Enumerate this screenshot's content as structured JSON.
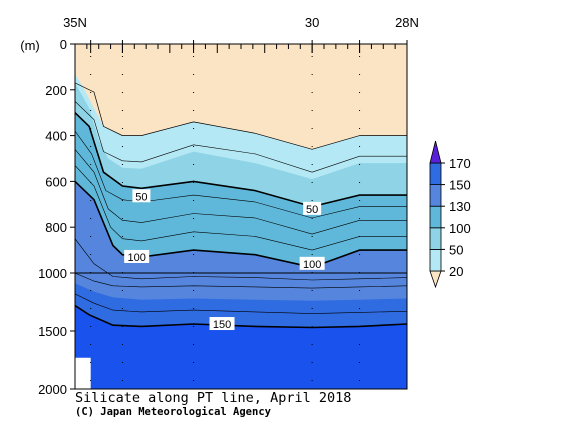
{
  "chart_data": {
    "type": "contour",
    "title": "Silicate along PT line, April 2018",
    "credit": "(C) Japan Meteorological Agency",
    "x_axis": {
      "orientation": "latitude, north (left) to south (right)",
      "range": [
        35,
        28
      ],
      "tick_labels": [
        {
          "lat": 35,
          "text": "35N"
        },
        {
          "lat": 30,
          "text": "30"
        },
        {
          "lat": 28,
          "text": "28N"
        }
      ]
    },
    "y_axis": {
      "label": "(m)",
      "range": [
        0,
        2000
      ],
      "scale": "piecewise linear: 0-1000 m upper panel, 1000-2000 m compressed lower panel",
      "tick_labels": [
        0,
        200,
        400,
        600,
        800,
        1000,
        1500,
        2000
      ]
    },
    "station_latitudes": [
      34.67,
      34.0,
      32.5,
      30.0,
      29.0,
      28.0
    ],
    "colorbar": {
      "levels": [
        20,
        50,
        100,
        130,
        150,
        170
      ],
      "level_labels": [
        "20",
        "50",
        "100",
        "130",
        "150",
        "170"
      ],
      "colors": [
        "#fbe4c4",
        "#b4e8f4",
        "#8ed4e6",
        "#5fb8da",
        "#5585dd",
        "#2f6be1",
        "#1a52ee",
        "#5a1fd8"
      ],
      "extend": "both"
    },
    "contour_labels": [
      {
        "text": "50",
        "lat": 33.6,
        "depth": 665
      },
      {
        "text": "50",
        "lat": 30.0,
        "depth": 720
      },
      {
        "text": "100",
        "lat": 33.7,
        "depth": 930
      },
      {
        "text": "100",
        "lat": 30.0,
        "depth": 960
      },
      {
        "text": "150",
        "lat": 31.9,
        "depth": 1440
      }
    ],
    "contours": [
      {
        "value": 20,
        "bold": false,
        "points": [
          [
            35,
            170
          ],
          [
            34.6,
            210
          ],
          [
            34.4,
            360
          ],
          [
            34.0,
            400
          ],
          [
            33.6,
            400
          ],
          [
            32.5,
            340
          ],
          [
            31.2,
            390
          ],
          [
            30.0,
            460
          ],
          [
            29.0,
            400
          ],
          [
            28.0,
            400
          ]
        ]
      },
      {
        "value": 50,
        "bold": true,
        "points": [
          [
            35,
            300
          ],
          [
            34.7,
            360
          ],
          [
            34.4,
            560
          ],
          [
            34.0,
            620
          ],
          [
            33.6,
            630
          ],
          [
            32.5,
            600
          ],
          [
            31.2,
            640
          ],
          [
            30.0,
            710
          ],
          [
            29.0,
            660
          ],
          [
            28.0,
            660
          ]
        ]
      },
      {
        "value": 100,
        "bold": true,
        "points": [
          [
            35,
            600
          ],
          [
            34.6,
            680
          ],
          [
            34.2,
            880
          ],
          [
            34.0,
            920
          ],
          [
            33.6,
            930
          ],
          [
            32.5,
            900
          ],
          [
            31.2,
            920
          ],
          [
            30.0,
            975
          ],
          [
            29.0,
            900
          ],
          [
            28.0,
            900
          ]
        ]
      },
      {
        "value": 150,
        "bold": true,
        "points": [
          [
            35,
            1280
          ],
          [
            34.7,
            1360
          ],
          [
            34.2,
            1450
          ],
          [
            33.6,
            1460
          ],
          [
            32.5,
            1440
          ],
          [
            31.2,
            1460
          ],
          [
            30.0,
            1470
          ],
          [
            29.0,
            1460
          ],
          [
            28.0,
            1440
          ]
        ]
      }
    ],
    "fill_layers": [
      {
        "color": "#b4e8f4",
        "points": [
          [
            35,
            130
          ],
          [
            34.8,
            200
          ],
          [
            34.55,
            300
          ],
          [
            34.4,
            360
          ],
          [
            34.0,
            400
          ],
          [
            33.6,
            400
          ],
          [
            32.5,
            340
          ],
          [
            31.2,
            390
          ],
          [
            30.0,
            460
          ],
          [
            29.0,
            400
          ],
          [
            28.0,
            400
          ]
        ]
      },
      {
        "color": "#8ed4e6",
        "points": [
          [
            35,
            170
          ],
          [
            34.7,
            280
          ],
          [
            34.5,
            420
          ],
          [
            34.3,
            500
          ],
          [
            34.0,
            540
          ],
          [
            33.6,
            545
          ],
          [
            32.5,
            470
          ],
          [
            31.2,
            520
          ],
          [
            30.0,
            590
          ],
          [
            29.0,
            520
          ],
          [
            28.0,
            520
          ]
        ]
      },
      {
        "color": "#5fb8da",
        "points": [
          [
            35,
            300
          ],
          [
            34.7,
            360
          ],
          [
            34.4,
            560
          ],
          [
            34.0,
            620
          ],
          [
            33.6,
            630
          ],
          [
            32.5,
            600
          ],
          [
            31.2,
            640
          ],
          [
            30.0,
            710
          ],
          [
            29.0,
            660
          ],
          [
            28.0,
            660
          ]
        ]
      },
      {
        "color": "#5585dd",
        "points": [
          [
            35,
            600
          ],
          [
            34.6,
            680
          ],
          [
            34.2,
            880
          ],
          [
            34.0,
            920
          ],
          [
            33.6,
            930
          ],
          [
            32.5,
            900
          ],
          [
            31.2,
            920
          ],
          [
            30.0,
            975
          ],
          [
            29.0,
            900
          ],
          [
            28.0,
            900
          ]
        ]
      },
      {
        "color": "#2f6be1",
        "points": [
          [
            35,
            1090
          ],
          [
            34.6,
            1160
          ],
          [
            34.2,
            1210
          ],
          [
            33.6,
            1230
          ],
          [
            32.5,
            1220
          ],
          [
            31.2,
            1230
          ],
          [
            30.0,
            1240
          ],
          [
            29.0,
            1230
          ],
          [
            28.0,
            1220
          ]
        ]
      },
      {
        "color": "#1a52ee",
        "points": [
          [
            35,
            1280
          ],
          [
            34.7,
            1360
          ],
          [
            34.2,
            1450
          ],
          [
            33.6,
            1460
          ],
          [
            32.5,
            1440
          ],
          [
            31.2,
            1460
          ],
          [
            30.0,
            1470
          ],
          [
            29.0,
            1460
          ],
          [
            28.0,
            1440
          ]
        ]
      }
    ],
    "thin_isolines": [
      [
        [
          35,
          250
        ],
        [
          34.6,
          330
        ],
        [
          34.4,
          470
        ],
        [
          34.0,
          510
        ],
        [
          33.6,
          515
        ],
        [
          32.5,
          440
        ],
        [
          31.2,
          480
        ],
        [
          30.0,
          560
        ],
        [
          29.0,
          490
        ],
        [
          28.0,
          490
        ]
      ],
      [
        [
          35,
          380
        ],
        [
          34.65,
          480
        ],
        [
          34.35,
          640
        ],
        [
          34.0,
          680
        ],
        [
          33.6,
          690
        ],
        [
          32.5,
          660
        ],
        [
          31.2,
          690
        ],
        [
          30.0,
          760
        ],
        [
          29.0,
          710
        ],
        [
          28.0,
          710
        ]
      ],
      [
        [
          35,
          460
        ],
        [
          34.6,
          560
        ],
        [
          34.3,
          720
        ],
        [
          34.0,
          770
        ],
        [
          33.6,
          780
        ],
        [
          32.5,
          740
        ],
        [
          31.2,
          760
        ],
        [
          30.0,
          830
        ],
        [
          29.0,
          770
        ],
        [
          28.0,
          770
        ]
      ],
      [
        [
          35,
          530
        ],
        [
          34.6,
          620
        ],
        [
          34.25,
          800
        ],
        [
          34.0,
          850
        ],
        [
          33.6,
          860
        ],
        [
          32.5,
          820
        ],
        [
          31.2,
          840
        ],
        [
          30.0,
          900
        ],
        [
          29.0,
          840
        ],
        [
          28.0,
          840
        ]
      ],
      [
        [
          35,
          850
        ],
        [
          34.6,
          960
        ],
        [
          34.2,
          1030
        ],
        [
          33.6,
          1050
        ],
        [
          32.5,
          1030
        ],
        [
          31.2,
          1040
        ],
        [
          30.0,
          1060
        ],
        [
          29.0,
          1050
        ],
        [
          28.0,
          1040
        ]
      ],
      [
        [
          35,
          1000
        ],
        [
          34.6,
          1070
        ],
        [
          34.2,
          1110
        ],
        [
          33.6,
          1120
        ],
        [
          32.5,
          1110
        ],
        [
          31.2,
          1120
        ],
        [
          30.0,
          1130
        ],
        [
          29.0,
          1120
        ],
        [
          28.0,
          1110
        ]
      ],
      [
        [
          35,
          1180
        ],
        [
          34.6,
          1260
        ],
        [
          34.2,
          1320
        ],
        [
          33.6,
          1335
        ],
        [
          32.5,
          1320
        ],
        [
          31.2,
          1335
        ],
        [
          30.0,
          1350
        ],
        [
          29.0,
          1340
        ],
        [
          28.0,
          1330
        ]
      ]
    ],
    "no_data": [
      [
        35,
        1730
      ],
      [
        34.67,
        1730
      ],
      [
        34.67,
        2000
      ],
      [
        35,
        2000
      ]
    ]
  }
}
